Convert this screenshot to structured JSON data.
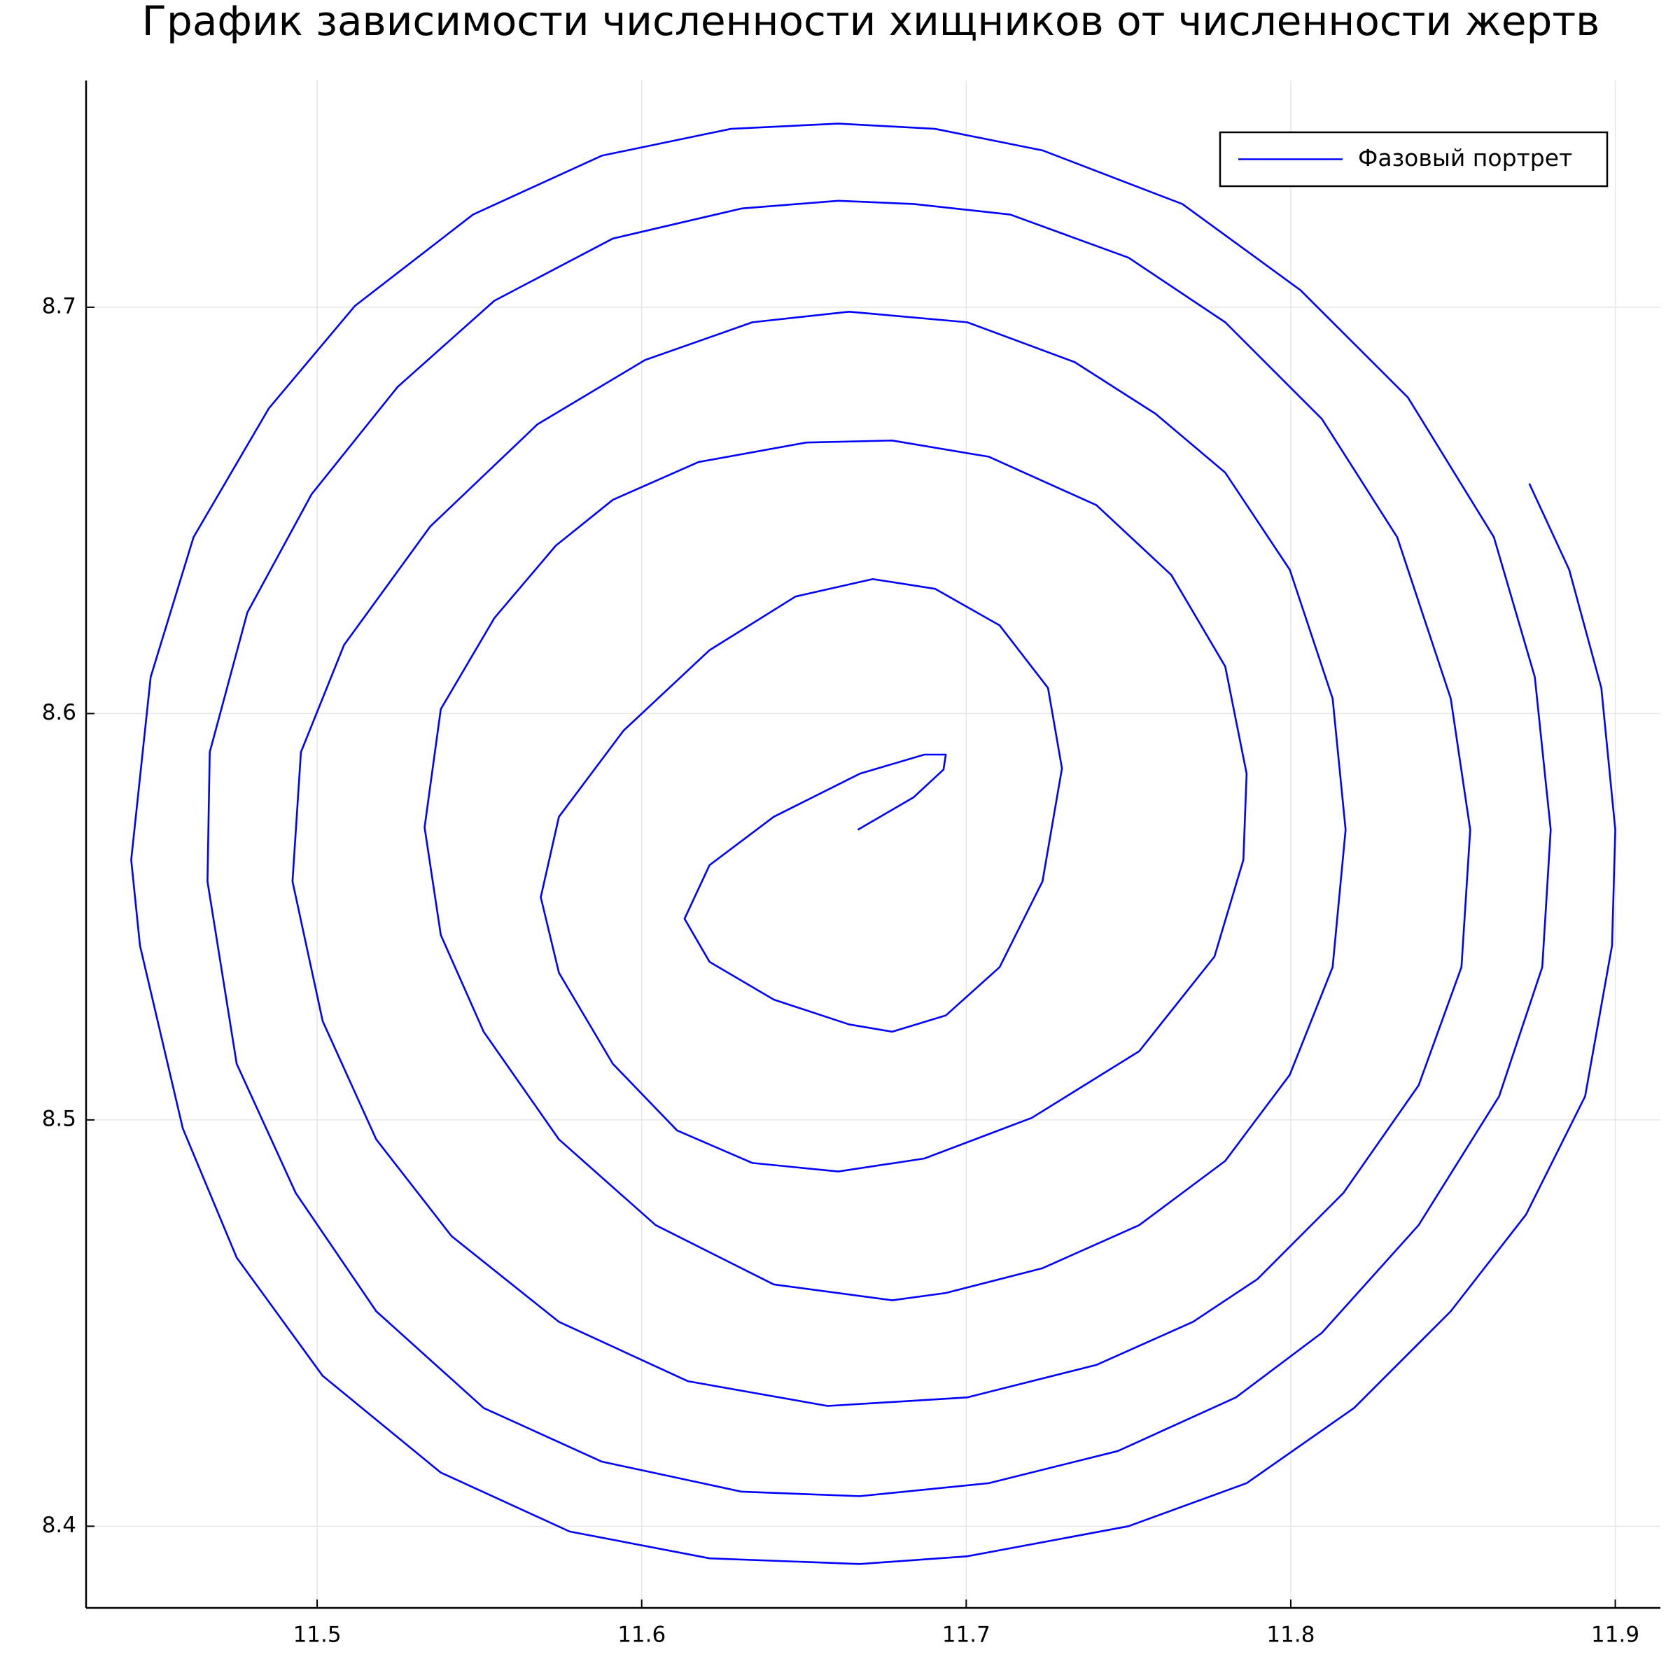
{
  "chart_data": {
    "type": "line",
    "title": "График зависимости численности хищников от численности жертв",
    "x": [
      11.6666,
      11.6838,
      11.693,
      11.6937,
      11.6871,
      11.6672,
      11.6407,
      11.6209,
      11.6132,
      11.6209,
      11.6407,
      11.6639,
      11.6772,
      11.6937,
      11.7103,
      11.7235,
      11.7295,
      11.7252,
      11.7103,
      11.6904,
      11.6712,
      11.6474,
      11.6209,
      11.5944,
      11.5745,
      11.5689,
      11.5745,
      11.5911,
      11.6109,
      11.6341,
      11.6606,
      11.6871,
      11.7202,
      11.7533,
      11.7765,
      11.7854,
      11.7864,
      11.7798,
      11.7632,
      11.7401,
      11.707,
      11.6772,
      11.6507,
      11.6175,
      11.5911,
      11.5735,
      11.5546,
      11.5381,
      11.5331,
      11.5381,
      11.5513,
      11.5745,
      11.6043,
      11.6407,
      11.6772,
      11.6937,
      11.7235,
      11.7533,
      11.7798,
      11.7997,
      11.8129,
      11.8169,
      11.8129,
      11.7997,
      11.7798,
      11.7583,
      11.7334,
      11.7003,
      11.6639,
      11.6341,
      11.601,
      11.5679,
      11.5348,
      11.5083,
      11.495,
      11.4924,
      11.5017,
      11.5182,
      11.5414,
      11.5745,
      11.6142,
      11.6573,
      11.7003,
      11.7401,
      11.7699,
      11.7897,
      11.8162,
      11.8394,
      11.8526,
      11.8553,
      11.8493,
      11.8328,
      11.8096,
      11.7798,
      11.75,
      11.7136,
      11.6838,
      11.6606,
      11.6308,
      11.5911,
      11.5546,
      11.5248,
      11.4983,
      11.4785,
      11.4669,
      11.4662,
      11.4752,
      11.4934,
      11.5182,
      11.5513,
      11.5877,
      11.6308,
      11.6672,
      11.707,
      11.7467,
      11.7831,
      11.8096,
      11.8394,
      11.8642,
      11.8775,
      11.8801,
      11.8752,
      11.8626,
      11.8361,
      11.803,
      11.7666,
      11.7235,
      11.6904,
      11.6606,
      11.6275,
      11.5877,
      11.548,
      11.5116,
      11.4851,
      11.4619,
      11.4487,
      11.4427,
      11.4454,
      11.4586,
      11.4752,
      11.5017,
      11.5381,
      11.5778,
      11.6209,
      11.6672,
      11.7003,
      11.75,
      11.7864,
      11.8195,
      11.8493,
      11.8725,
      11.8907,
      11.899,
      11.9,
      11.8957,
      11.8858,
      11.8735
    ],
    "series": [
      {
        "name": "Фазовый портрет",
        "color": "#0000ff",
        "values": [
          8.5714,
          8.5794,
          8.5862,
          8.5899,
          8.5899,
          8.5852,
          8.5746,
          8.5627,
          8.5495,
          8.5389,
          8.5296,
          8.5235,
          8.5217,
          8.5257,
          8.5376,
          8.5587,
          8.5865,
          8.6063,
          8.6217,
          8.6307,
          8.6331,
          8.6288,
          8.6156,
          8.5958,
          8.5746,
          8.5548,
          8.5362,
          8.5138,
          8.4974,
          8.4894,
          8.4873,
          8.4905,
          8.5005,
          8.5169,
          8.5402,
          8.564,
          8.5852,
          8.6116,
          8.6341,
          8.6513,
          8.6632,
          8.6672,
          8.6667,
          8.6619,
          8.6526,
          8.6413,
          8.6235,
          8.6011,
          8.572,
          8.5455,
          8.5217,
          8.4952,
          8.4741,
          8.4595,
          8.4556,
          8.4574,
          8.4635,
          8.4741,
          8.4899,
          8.5111,
          8.5376,
          8.5714,
          8.6037,
          8.6354,
          8.6593,
          8.6738,
          8.6865,
          8.6963,
          8.6989,
          8.6963,
          8.687,
          8.6712,
          8.646,
          8.6169,
          8.5905,
          8.5587,
          8.5243,
          8.4952,
          8.4714,
          8.4503,
          8.4357,
          8.4296,
          8.4317,
          8.4397,
          8.4503,
          8.4608,
          8.482,
          8.5085,
          8.5376,
          8.5714,
          8.6037,
          8.6434,
          8.6725,
          8.6963,
          8.7122,
          8.7228,
          8.7254,
          8.7262,
          8.7243,
          8.7169,
          8.7016,
          8.6804,
          8.654,
          8.6249,
          8.5905,
          8.5587,
          8.5138,
          8.482,
          8.4529,
          8.4291,
          8.4159,
          8.4085,
          8.4074,
          8.4106,
          8.4185,
          8.4317,
          8.4476,
          8.4741,
          8.5058,
          8.5376,
          8.5714,
          8.609,
          8.6434,
          8.6778,
          8.7042,
          8.7254,
          8.7386,
          8.7439,
          8.7452,
          8.7439,
          8.7373,
          8.7228,
          8.7003,
          8.6751,
          8.6434,
          8.609,
          8.564,
          8.5429,
          8.4979,
          8.4661,
          8.437,
          8.4132,
          8.3987,
          8.3921,
          8.3907,
          8.3926,
          8.4,
          8.4106,
          8.4291,
          8.4529,
          8.4767,
          8.5058,
          8.5429,
          8.5714,
          8.6063,
          8.6354,
          8.6566
        ]
      }
    ],
    "xlim": [
      11.4288,
      11.9139
    ],
    "ylim": [
      8.3799,
      8.7558
    ],
    "xticks": [
      11.5,
      11.6,
      11.7,
      11.8,
      11.9
    ],
    "yticks": [
      8.4,
      8.5,
      8.6,
      8.7
    ],
    "grid": true,
    "legend": "upper right"
  }
}
